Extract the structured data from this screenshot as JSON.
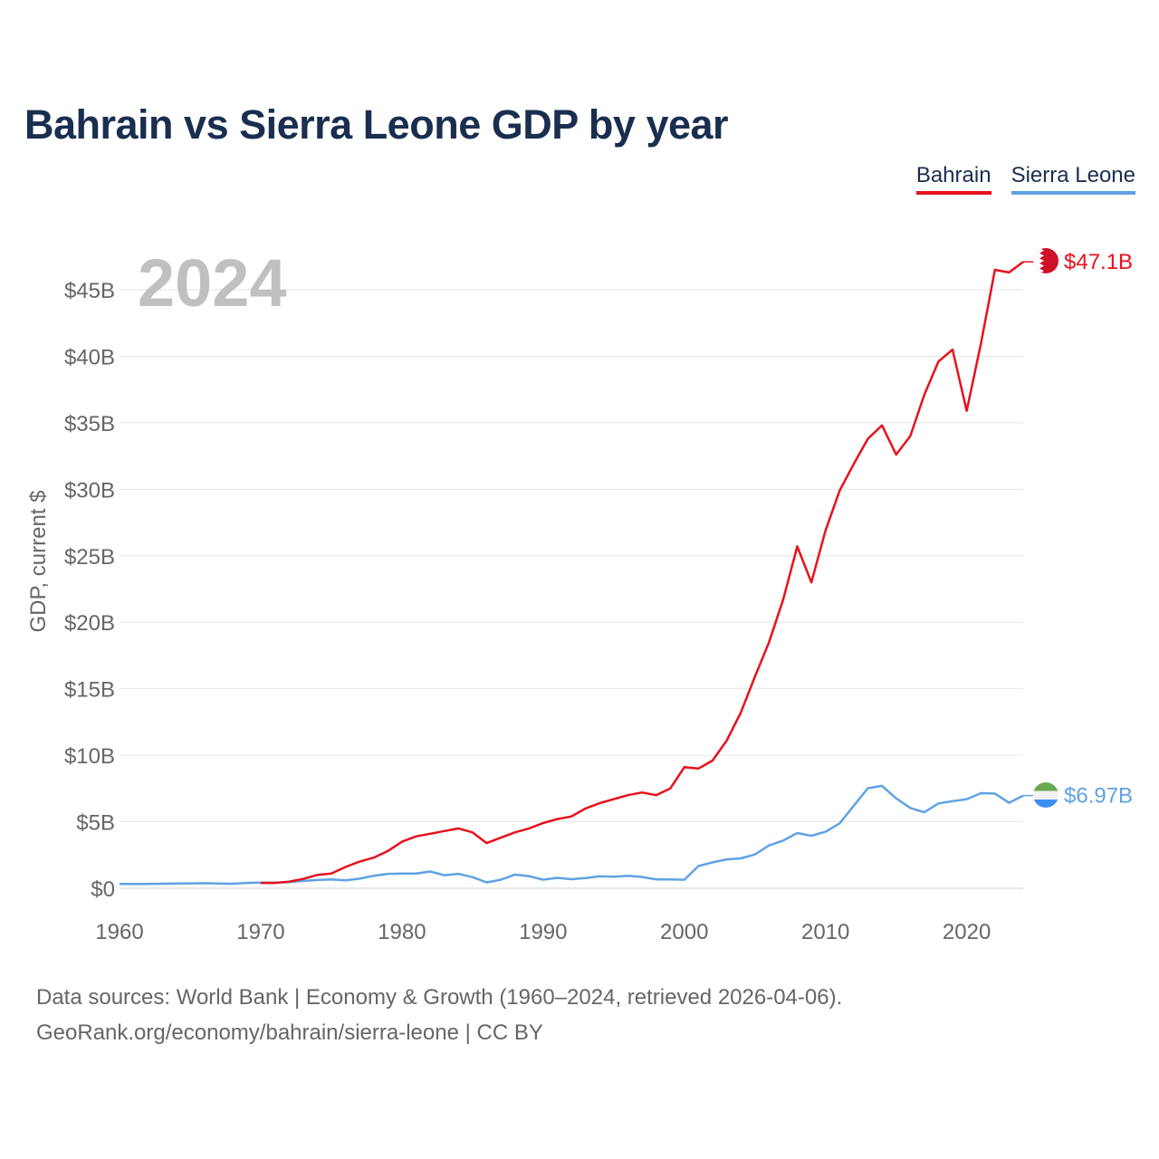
{
  "title": "Bahrain vs Sierra Leone GDP by year",
  "legend": {
    "bahrain": "Bahrain",
    "sierra_leone": "Sierra Leone"
  },
  "year_label": "2024",
  "footer": {
    "line1": "Data sources: World Bank | Economy & Growth (1960–2024, retrieved 2026-04-06).",
    "line2": "GeoRank.org/economy/bahrain/sierra-leone | CC BY"
  },
  "colors": {
    "bahrain": "#e8111b",
    "sierra_leone": "#5fa2e4",
    "title": "#1a2e4f",
    "axis_text": "#666666",
    "grid": "#e6e6e6",
    "year_watermark": "#c0c0c0"
  },
  "chart_data": {
    "type": "line",
    "title": "Bahrain vs Sierra Leone GDP by year",
    "xlabel": "",
    "ylabel": "GDP, current $",
    "xlim": [
      1960,
      2024
    ],
    "ylim": [
      0,
      48
    ],
    "y_unit": "billions USD",
    "x_ticks": [
      1960,
      1970,
      1980,
      1990,
      2000,
      2010,
      2020
    ],
    "x_tick_labels": [
      "1960",
      "1970",
      "1980",
      "1990",
      "2000",
      "2010",
      "2020"
    ],
    "y_ticks": [
      0,
      5,
      10,
      15,
      20,
      25,
      30,
      35,
      40,
      45
    ],
    "y_tick_labels": [
      "$0",
      "$5B",
      "$10B",
      "$15B",
      "$20B",
      "$25B",
      "$30B",
      "$35B",
      "$40B",
      "$45B"
    ],
    "grid": true,
    "legend_position": "top-right",
    "series": [
      {
        "name": "Bahrain",
        "end_label": "$47.1B",
        "x": [
          1970,
          1971,
          1972,
          1973,
          1974,
          1975,
          1976,
          1977,
          1978,
          1979,
          1980,
          1981,
          1982,
          1983,
          1984,
          1985,
          1986,
          1987,
          1988,
          1989,
          1990,
          1991,
          1992,
          1993,
          1994,
          1995,
          1996,
          1997,
          1998,
          1999,
          2000,
          2001,
          2002,
          2003,
          2004,
          2005,
          2006,
          2007,
          2008,
          2009,
          2010,
          2011,
          2012,
          2013,
          2014,
          2015,
          2016,
          2017,
          2018,
          2019,
          2020,
          2021,
          2022,
          2023,
          2024
        ],
        "values": [
          0.4,
          0.4,
          0.5,
          0.7,
          1.0,
          1.1,
          1.6,
          2.0,
          2.3,
          2.8,
          3.5,
          3.9,
          4.1,
          4.3,
          4.5,
          4.2,
          3.4,
          3.8,
          4.2,
          4.5,
          4.9,
          5.2,
          5.4,
          6.0,
          6.4,
          6.7,
          7.0,
          7.2,
          7.0,
          7.5,
          9.1,
          9.0,
          9.6,
          11.1,
          13.2,
          15.9,
          18.5,
          21.7,
          25.7,
          23.0,
          26.9,
          29.9,
          31.9,
          33.8,
          34.8,
          32.6,
          34.0,
          37.1,
          39.6,
          40.5,
          35.9,
          40.9,
          46.5,
          46.3,
          47.1
        ]
      },
      {
        "name": "Sierra Leone",
        "end_label": "$6.97B",
        "x": [
          1960,
          1961,
          1962,
          1963,
          1964,
          1965,
          1966,
          1967,
          1968,
          1969,
          1970,
          1971,
          1972,
          1973,
          1974,
          1975,
          1976,
          1977,
          1978,
          1979,
          1980,
          1981,
          1982,
          1983,
          1984,
          1985,
          1986,
          1987,
          1988,
          1989,
          1990,
          1991,
          1992,
          1993,
          1994,
          1995,
          1996,
          1997,
          1998,
          1999,
          2000,
          2001,
          2002,
          2003,
          2004,
          2005,
          2006,
          2007,
          2008,
          2009,
          2010,
          2011,
          2012,
          2013,
          2014,
          2015,
          2016,
          2017,
          2018,
          2019,
          2020,
          2021,
          2022,
          2023,
          2024
        ],
        "values": [
          0.32,
          0.33,
          0.33,
          0.34,
          0.36,
          0.37,
          0.38,
          0.36,
          0.34,
          0.4,
          0.43,
          0.43,
          0.46,
          0.55,
          0.62,
          0.66,
          0.6,
          0.72,
          0.94,
          1.08,
          1.1,
          1.11,
          1.26,
          0.98,
          1.08,
          0.84,
          0.44,
          0.64,
          1.03,
          0.91,
          0.65,
          0.78,
          0.68,
          0.77,
          0.9,
          0.87,
          0.94,
          0.85,
          0.67,
          0.66,
          0.64,
          1.67,
          1.95,
          2.17,
          2.25,
          2.54,
          3.22,
          3.59,
          4.15,
          3.95,
          4.25,
          4.88,
          6.2,
          7.52,
          7.7,
          6.76,
          6.04,
          5.71,
          6.38,
          6.55,
          6.7,
          7.15,
          7.12,
          6.43,
          6.97
        ]
      }
    ]
  }
}
